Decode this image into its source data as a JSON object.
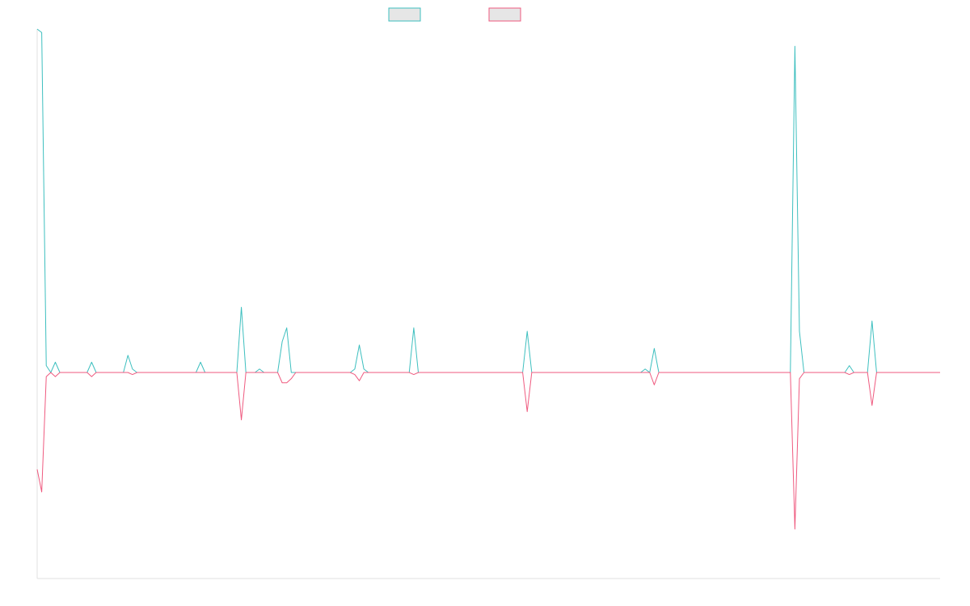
{
  "chart_data": {
    "type": "line",
    "title": "",
    "xlabel": "",
    "ylabel": "",
    "ylim": [
      -1.0,
      1.0
    ],
    "baseline": 0,
    "grid": false,
    "legend_position": "top-center",
    "axis_color": "#e0e0e0",
    "n_points": 200,
    "series": [
      {
        "key": "up",
        "label": "",
        "color": "#3dbfbf",
        "legend_fill": "#e6e6e6",
        "spikes": [
          {
            "i": 0,
            "v": 1.0
          },
          {
            "i": 1,
            "v": 0.99
          },
          {
            "i": 2,
            "v": 0.02
          },
          {
            "i": 4,
            "v": 0.03
          },
          {
            "i": 12,
            "v": 0.03
          },
          {
            "i": 20,
            "v": 0.05
          },
          {
            "i": 21,
            "v": 0.01
          },
          {
            "i": 36,
            "v": 0.03
          },
          {
            "i": 45,
            "v": 0.19
          },
          {
            "i": 49,
            "v": 0.01
          },
          {
            "i": 54,
            "v": 0.09
          },
          {
            "i": 55,
            "v": 0.13
          },
          {
            "i": 70,
            "v": 0.01
          },
          {
            "i": 71,
            "v": 0.08
          },
          {
            "i": 72,
            "v": 0.01
          },
          {
            "i": 83,
            "v": 0.13
          },
          {
            "i": 108,
            "v": 0.12
          },
          {
            "i": 134,
            "v": 0.01
          },
          {
            "i": 136,
            "v": 0.07
          },
          {
            "i": 167,
            "v": 0.95
          },
          {
            "i": 168,
            "v": 0.12
          },
          {
            "i": 179,
            "v": 0.02
          },
          {
            "i": 184,
            "v": 0.15
          }
        ]
      },
      {
        "key": "down",
        "label": "",
        "color": "#ef5a7f",
        "legend_fill": "#e6e6e6",
        "spikes": [
          {
            "i": 0,
            "v": -0.47
          },
          {
            "i": 1,
            "v": -0.58
          },
          {
            "i": 2,
            "v": -0.02
          },
          {
            "i": 4,
            "v": -0.02
          },
          {
            "i": 12,
            "v": -0.02
          },
          {
            "i": 21,
            "v": -0.01
          },
          {
            "i": 45,
            "v": -0.23
          },
          {
            "i": 54,
            "v": -0.05
          },
          {
            "i": 55,
            "v": -0.05
          },
          {
            "i": 56,
            "v": -0.03
          },
          {
            "i": 70,
            "v": -0.01
          },
          {
            "i": 71,
            "v": -0.04
          },
          {
            "i": 83,
            "v": -0.01
          },
          {
            "i": 108,
            "v": -0.19
          },
          {
            "i": 136,
            "v": -0.06
          },
          {
            "i": 167,
            "v": -0.76
          },
          {
            "i": 168,
            "v": -0.03
          },
          {
            "i": 179,
            "v": -0.01
          },
          {
            "i": 184,
            "v": -0.16
          }
        ]
      }
    ]
  }
}
